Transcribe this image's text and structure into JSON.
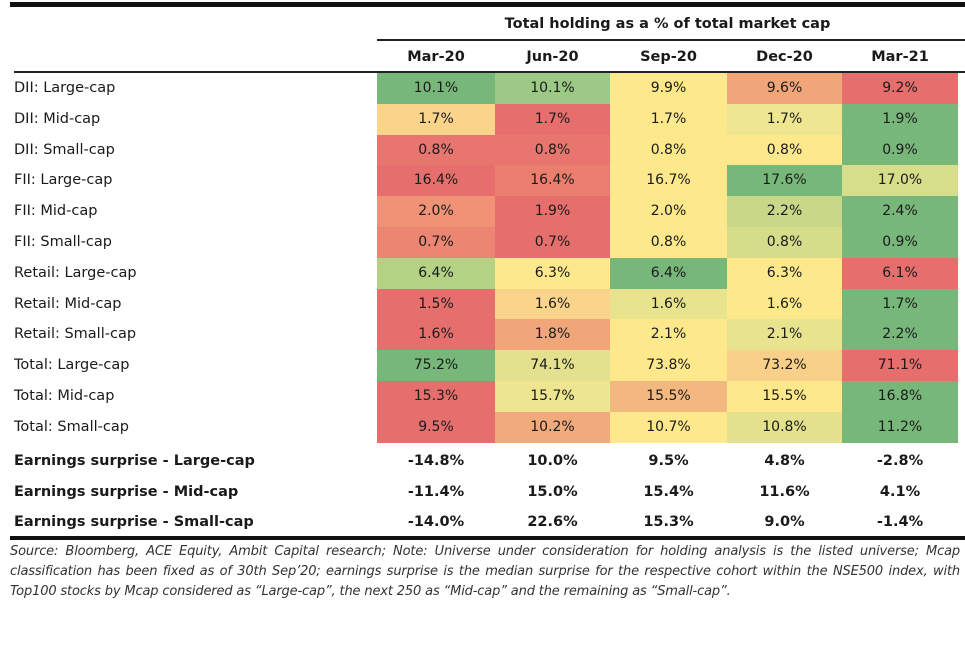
{
  "chart_data": {
    "type": "heatmap",
    "title": "Total holding as a % of total market cap",
    "columns": [
      "Mar-20",
      "Jun-20",
      "Sep-20",
      "Dec-20",
      "Mar-21"
    ],
    "color_scale": {
      "low": "#e67470",
      "mid": "#fbe88a",
      "high": "#7bbb7e",
      "direction": "per row: red = lowest, green = highest"
    },
    "rows": [
      {
        "label": "DII: Large-cap",
        "values": [
          "10.1%",
          "10.1%",
          "9.9%",
          "9.6%",
          "9.2%"
        ],
        "colors": [
          "#77b87a",
          "#9cc985",
          "#fde98b",
          "#f0a679",
          "#e66f6d"
        ]
      },
      {
        "label": "DII: Mid-cap",
        "values": [
          "1.7%",
          "1.7%",
          "1.7%",
          "1.7%",
          "1.9%"
        ],
        "colors": [
          "#f9d48a",
          "#e66f6d",
          "#fde98b",
          "#eee690",
          "#77b87a"
        ]
      },
      {
        "label": "DII: Small-cap",
        "values": [
          "0.8%",
          "0.8%",
          "0.8%",
          "0.8%",
          "0.9%"
        ],
        "colors": [
          "#e8756e",
          "#e8756e",
          "#fde98b",
          "#fde98b",
          "#77b87a"
        ]
      },
      {
        "label": "FII: Large-cap",
        "values": [
          "16.4%",
          "16.4%",
          "16.7%",
          "17.6%",
          "17.0%"
        ],
        "colors": [
          "#e66f6d",
          "#ea7f70",
          "#fde98b",
          "#77b87a",
          "#d7de8a"
        ]
      },
      {
        "label": "FII: Mid-cap",
        "values": [
          "2.0%",
          "1.9%",
          "2.0%",
          "2.2%",
          "2.4%"
        ],
        "colors": [
          "#ef9276",
          "#e66f6d",
          "#fde98b",
          "#c7d889",
          "#77b87a"
        ]
      },
      {
        "label": "FII: Small-cap",
        "values": [
          "0.7%",
          "0.7%",
          "0.8%",
          "0.8%",
          "0.9%"
        ],
        "colors": [
          "#ec8672",
          "#e66f6d",
          "#fde98b",
          "#d5dc8a",
          "#77b87a"
        ]
      },
      {
        "label": "Retail: Large-cap",
        "values": [
          "6.4%",
          "6.3%",
          "6.4%",
          "6.3%",
          "6.1%"
        ],
        "colors": [
          "#b3d284",
          "#fde98b",
          "#77b87a",
          "#fde98b",
          "#e66f6d"
        ]
      },
      {
        "label": "Retail: Mid-cap",
        "values": [
          "1.5%",
          "1.6%",
          "1.6%",
          "1.6%",
          "1.7%"
        ],
        "colors": [
          "#e66f6d",
          "#f9d48a",
          "#e8e48e",
          "#fde98b",
          "#77b87a"
        ]
      },
      {
        "label": "Retail: Small-cap",
        "values": [
          "1.6%",
          "1.8%",
          "2.1%",
          "2.1%",
          "2.2%"
        ],
        "colors": [
          "#e66f6d",
          "#f0a679",
          "#fde98b",
          "#e8e48e",
          "#77b87a"
        ]
      },
      {
        "label": "Total: Large-cap",
        "values": [
          "75.2%",
          "74.1%",
          "73.8%",
          "73.2%",
          "71.1%"
        ],
        "colors": [
          "#77b87a",
          "#e3e18d",
          "#fde98b",
          "#f9d08a",
          "#e66f6d"
        ]
      },
      {
        "label": "Total: Mid-cap",
        "values": [
          "15.3%",
          "15.7%",
          "15.5%",
          "15.5%",
          "16.8%"
        ],
        "colors": [
          "#e66f6d",
          "#ede590",
          "#f3b880",
          "#fde98b",
          "#77b87a"
        ]
      },
      {
        "label": "Total: Small-cap",
        "values": [
          "9.5%",
          "10.2%",
          "10.7%",
          "10.8%",
          "11.2%"
        ],
        "colors": [
          "#e66f6d",
          "#f0aa7b",
          "#fde98b",
          "#e3e18d",
          "#77b87a"
        ]
      }
    ],
    "earnings_rows": [
      {
        "label": "Earnings surprise - Large-cap",
        "values": [
          "-14.8%",
          "10.0%",
          "9.5%",
          "4.8%",
          "-2.8%"
        ]
      },
      {
        "label": "Earnings surprise - Mid-cap",
        "values": [
          "-11.4%",
          "15.0%",
          "15.4%",
          "11.6%",
          "4.1%"
        ]
      },
      {
        "label": "Earnings surprise - Small-cap",
        "values": [
          "-14.0%",
          "22.6%",
          "15.3%",
          "9.0%",
          "-1.4%"
        ]
      }
    ]
  },
  "footnote": "Source: Bloomberg, ACE Equity, Ambit Capital research; Note: Universe under consideration for holding analysis is the listed universe; Mcap classification has been fixed as of 30th Sep’20; earnings surprise is the median surprise for the respective cohort within the NSE500 index, with Top100 stocks by Mcap considered as “Large-cap”, the next 250 as “Mid-cap” and the remaining as “Small-cap”."
}
